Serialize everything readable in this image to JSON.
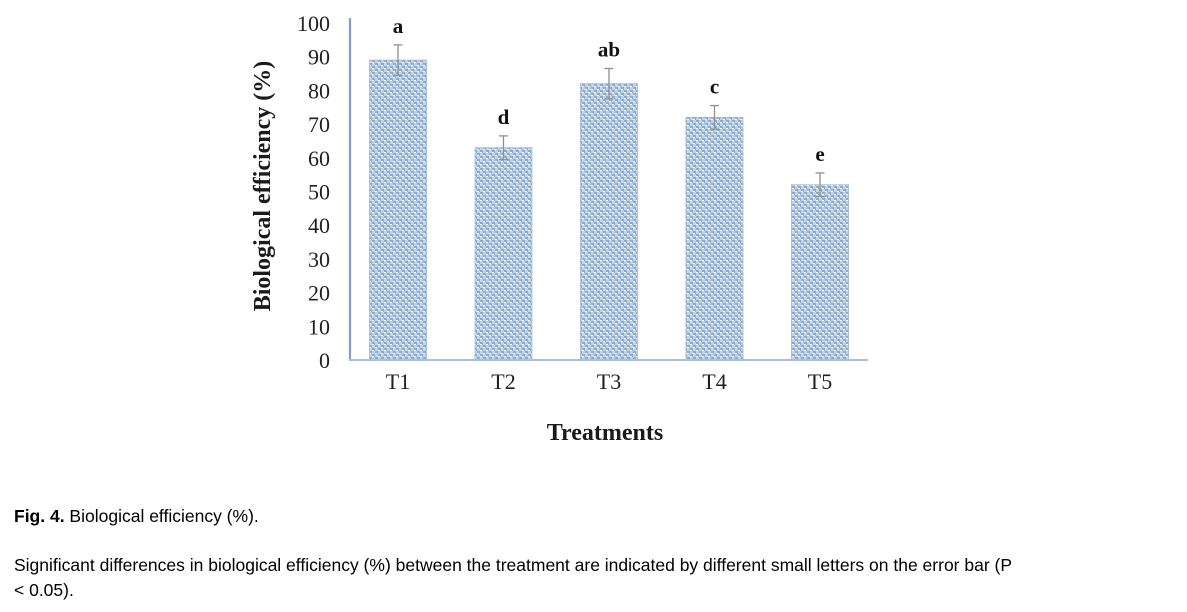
{
  "chart_data": {
    "type": "bar",
    "title": "",
    "xlabel": "Treatments",
    "ylabel": "Biological efficiency (%)",
    "categories": [
      "T1",
      "T2",
      "T3",
      "T4",
      "T5"
    ],
    "values": [
      89,
      63,
      82,
      72,
      52
    ],
    "error_bars": [
      4.5,
      3.5,
      4.5,
      3.5,
      3.5
    ],
    "sig_letters": [
      "a",
      "d",
      "ab",
      "c",
      "e"
    ],
    "ylim": [
      0,
      100
    ],
    "yticks": [
      0,
      10,
      20,
      30,
      40,
      50,
      60,
      70,
      80,
      90,
      100
    ],
    "grid": "off",
    "legend": "none",
    "bar_pattern_light": "#c3d4e7",
    "bar_pattern_dark": "#8aabce",
    "bar_outline": "#9fb7d4",
    "y_axis_color": "#7f9ecb",
    "x_axis_color": "#a9c1dd",
    "error_bar_color": "#8f8f8f"
  },
  "caption": {
    "label": "Fig. 4.",
    "title": " Biological efficiency (%)."
  },
  "note": {
    "line1": "Significant differences in biological efficiency (%) between the treatment are indicated by different small letters on the error bar (P",
    "line2": "< 0.05)."
  }
}
